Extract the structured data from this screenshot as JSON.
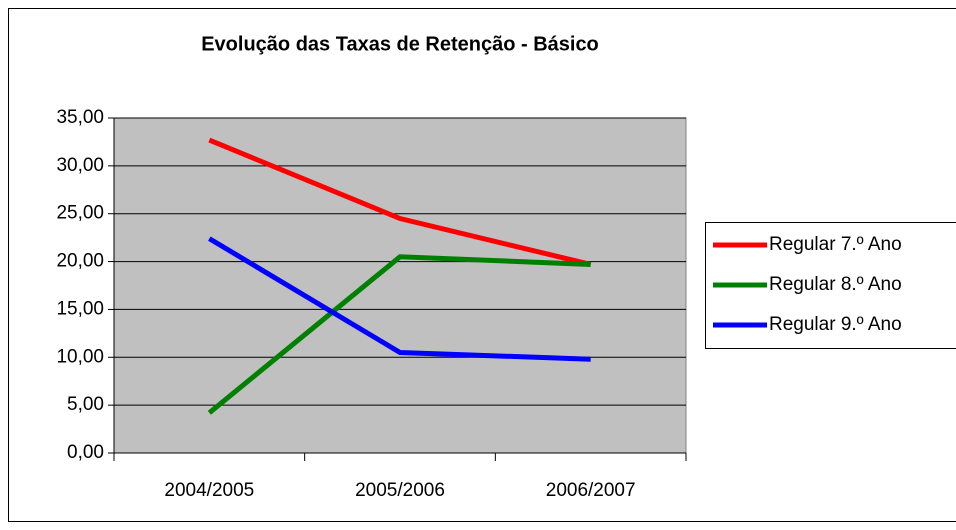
{
  "chart_data": {
    "type": "line",
    "title": "Evolução das Taxas de Retenção - Básico",
    "categories": [
      "2004/2005",
      "2005/2006",
      "2006/2007"
    ],
    "series": [
      {
        "name": "Regular 7.º Ano",
        "color": "#ff0000",
        "values": [
          32.7,
          24.5,
          19.7
        ]
      },
      {
        "name": "Regular 8.º Ano",
        "color": "#008000",
        "values": [
          4.2,
          20.5,
          19.7
        ]
      },
      {
        "name": "Regular 9.º Ano",
        "color": "#0000ff",
        "values": [
          22.4,
          10.5,
          9.8
        ]
      }
    ],
    "ylim": [
      0,
      35
    ],
    "yticks": [
      {
        "value": 0,
        "label": "0,00"
      },
      {
        "value": 5,
        "label": "5,00"
      },
      {
        "value": 10,
        "label": "10,00"
      },
      {
        "value": 15,
        "label": "15,00"
      },
      {
        "value": 20,
        "label": "20,00"
      },
      {
        "value": 25,
        "label": "25,00"
      },
      {
        "value": 30,
        "label": "30,00"
      },
      {
        "value": 35,
        "label": "35,00"
      }
    ],
    "grid": true,
    "plot_background": "#c0c0c0",
    "legend": "right"
  }
}
